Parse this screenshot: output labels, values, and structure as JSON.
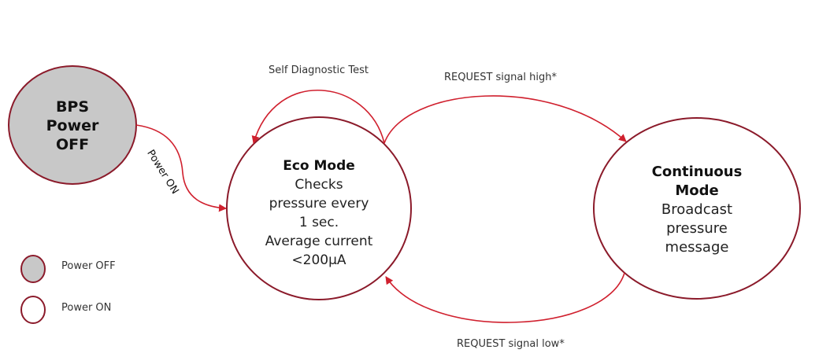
{
  "colors": {
    "edge": "#d0202e",
    "node_stroke": "#8b1a2a",
    "off_fill": "#c8c8c8",
    "on_fill": "#ffffff"
  },
  "nodes": {
    "power_off": {
      "title": "BPS Power OFF",
      "lines": [
        "BPS",
        "Power",
        "OFF"
      ]
    },
    "eco": {
      "title": "Eco Mode",
      "lines": [
        "Checks",
        "pressure every",
        "1 sec.",
        "Average current",
        "<200µA"
      ]
    },
    "continuous": {
      "title_lines": [
        "Continuous",
        "Mode"
      ],
      "lines": [
        "Broadcast",
        "pressure",
        "message"
      ]
    }
  },
  "edges": {
    "power_on": "Power ON",
    "self_test": "Self Diagnostic Test",
    "request_high": "REQUEST signal high*",
    "request_low": "REQUEST signal low*"
  },
  "legend": [
    {
      "label": "Power OFF",
      "state": "off"
    },
    {
      "label": "Power ON",
      "state": "on"
    }
  ]
}
